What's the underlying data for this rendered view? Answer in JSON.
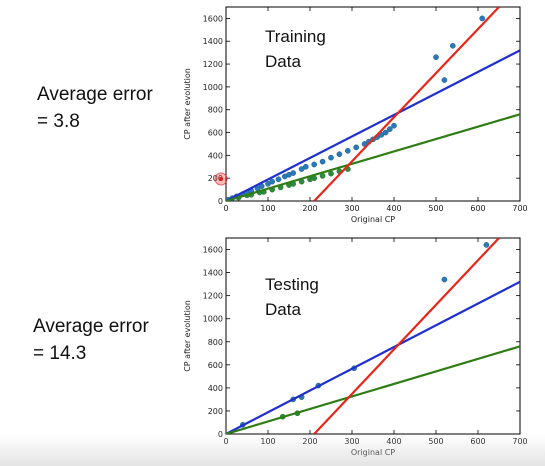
{
  "left_labels": [
    {
      "line1": "Average error",
      "line2": "= 3.8"
    },
    {
      "line1": "Average error",
      "line2": "= 14.3"
    }
  ],
  "chart_data": [
    {
      "type": "scatter",
      "title": "Training Data",
      "title_lines": [
        "Training",
        "Data"
      ],
      "xlabel": "Original CP",
      "ylabel": "CP after evolution",
      "xlim": [
        0,
        700
      ],
      "ylim": [
        0,
        1700
      ],
      "xticks": [
        0,
        100,
        200,
        300,
        400,
        500,
        600,
        700
      ],
      "yticks": [
        0,
        200,
        400,
        600,
        800,
        1000,
        1200,
        1400,
        1600
      ],
      "points_blue": [
        [
          5,
          10
        ],
        [
          15,
          25
        ],
        [
          25,
          40
        ],
        [
          40,
          60
        ],
        [
          50,
          75
        ],
        [
          60,
          90
        ],
        [
          75,
          110
        ],
        [
          85,
          130
        ],
        [
          100,
          150
        ],
        [
          110,
          170
        ],
        [
          125,
          190
        ],
        [
          140,
          215
        ],
        [
          150,
          230
        ],
        [
          160,
          245
        ],
        [
          180,
          280
        ],
        [
          190,
          300
        ],
        [
          210,
          320
        ],
        [
          230,
          345
        ],
        [
          250,
          380
        ],
        [
          270,
          410
        ],
        [
          290,
          440
        ],
        [
          310,
          470
        ],
        [
          330,
          500
        ],
        [
          340,
          520
        ],
        [
          350,
          540
        ],
        [
          360,
          560
        ],
        [
          370,
          580
        ],
        [
          380,
          600
        ],
        [
          390,
          630
        ],
        [
          400,
          660
        ],
        [
          500,
          1260
        ],
        [
          540,
          1360
        ],
        [
          520,
          1060
        ],
        [
          610,
          1600
        ]
      ],
      "points_green": [
        [
          5,
          5
        ],
        [
          30,
          30
        ],
        [
          50,
          50
        ],
        [
          60,
          55
        ],
        [
          80,
          75
        ],
        [
          90,
          80
        ],
        [
          110,
          100
        ],
        [
          130,
          120
        ],
        [
          150,
          140
        ],
        [
          160,
          150
        ],
        [
          180,
          170
        ],
        [
          200,
          190
        ],
        [
          210,
          200
        ],
        [
          230,
          220
        ],
        [
          250,
          240
        ],
        [
          270,
          260
        ],
        [
          290,
          280
        ]
      ],
      "series": [
        {
          "color": "#1f2fd0",
          "line": [
            [
              0,
              0
            ],
            [
              700,
              1320
            ]
          ]
        },
        {
          "color": "#2e7d14",
          "line": [
            [
              0,
              0
            ],
            [
              700,
              760
            ]
          ]
        },
        {
          "color": "#e8261a",
          "line": [
            [
              210,
              0
            ],
            [
              650,
              1700
            ]
          ]
        }
      ]
    },
    {
      "type": "scatter",
      "title": "Testing Data",
      "title_lines": [
        "Testing",
        "Data"
      ],
      "xlabel": "Original CP",
      "ylabel": "CP after evolution",
      "xlim": [
        0,
        700
      ],
      "ylim": [
        0,
        1700
      ],
      "xticks": [
        0,
        100,
        200,
        300,
        400,
        500,
        600,
        700
      ],
      "yticks": [
        0,
        200,
        400,
        600,
        800,
        1000,
        1200,
        1400,
        1600
      ],
      "points_blue": [
        [
          40,
          80
        ],
        [
          160,
          300
        ],
        [
          180,
          320
        ],
        [
          220,
          420
        ],
        [
          305,
          570
        ],
        [
          520,
          1340
        ],
        [
          620,
          1640
        ]
      ],
      "points_green": [
        [
          135,
          150
        ],
        [
          170,
          180
        ]
      ],
      "series": [
        {
          "color": "#1f2fd0",
          "line": [
            [
              0,
              0
            ],
            [
              700,
              1320
            ]
          ]
        },
        {
          "color": "#2e7d14",
          "line": [
            [
              0,
              0
            ],
            [
              700,
              760
            ]
          ]
        },
        {
          "color": "#e8261a",
          "line": [
            [
              210,
              0
            ],
            [
              650,
              1700
            ]
          ]
        }
      ]
    }
  ]
}
